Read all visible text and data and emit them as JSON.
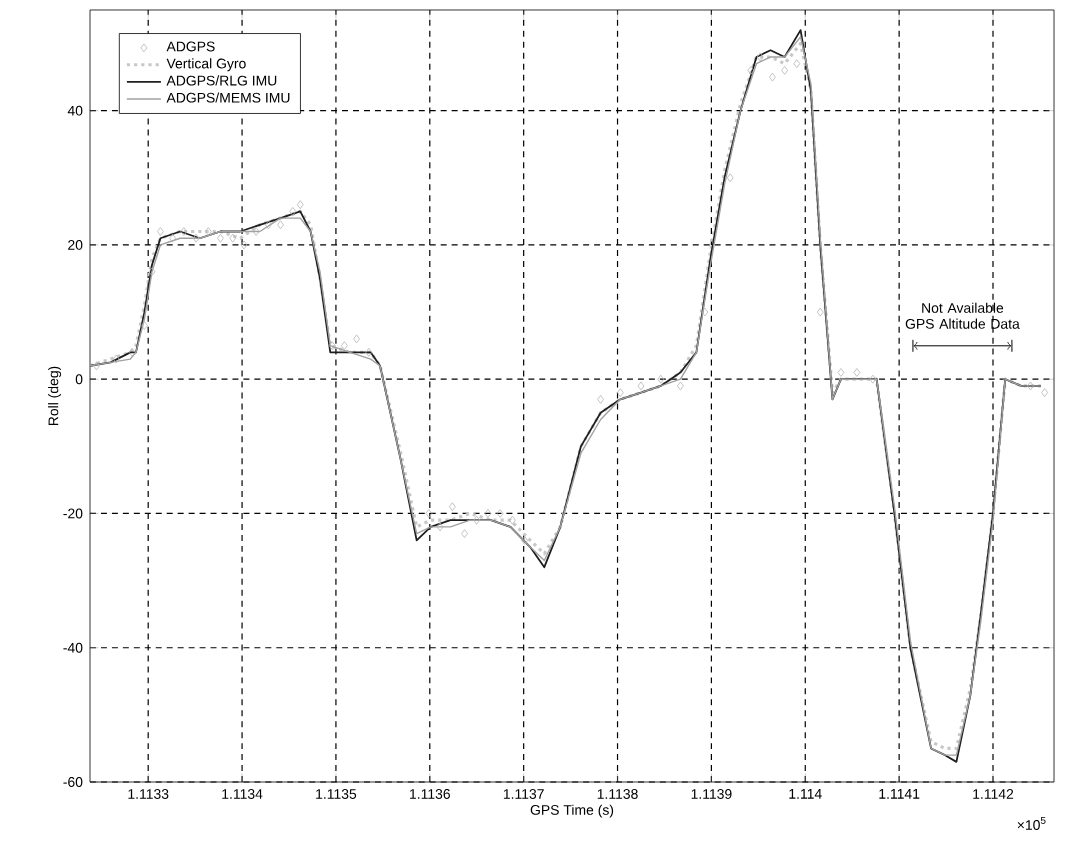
{
  "chart_data": {
    "type": "line",
    "xlabel": "GPS Time (s)",
    "ylabel": "Roll (deg)",
    "xlim": [
      1.113238,
      1.114265
    ],
    "ylim": [
      -60,
      55
    ],
    "xticks": [
      1.1133,
      1.1134,
      1.1135,
      1.1136,
      1.1137,
      1.1138,
      1.1139,
      1.114,
      1.1141,
      1.1142
    ],
    "yticks": [
      -60,
      -40,
      -20,
      0,
      20,
      40
    ],
    "grid": true,
    "legend": "top left",
    "annotations": [
      "×10$^{5}$",
      "Not Available GPS Altitude Data"
    ],
    "x": [
      1.113238,
      1.11326,
      1.113281,
      1.113287,
      1.113296,
      1.113304,
      1.113313,
      1.113334,
      1.113355,
      1.113377,
      1.113398,
      1.113419,
      1.113441,
      1.113462,
      1.113473,
      1.113483,
      1.113494,
      1.113515,
      1.113537,
      1.113547,
      1.113569,
      1.113586,
      1.113601,
      1.113622,
      1.113643,
      1.113665,
      1.113686,
      1.113707,
      1.113722,
      1.113739,
      1.113761,
      1.113782,
      1.113803,
      1.113825,
      1.113846,
      1.113867,
      1.113884,
      1.113899,
      1.113914,
      1.113931,
      1.113948,
      1.113963,
      1.113978,
      1.113995,
      1.114006,
      1.114016,
      1.114029,
      1.114038,
      1.114059,
      1.114076,
      1.114095,
      1.114112,
      1.114134,
      1.114149,
      1.114161,
      1.114176,
      1.114187,
      1.1142,
      1.114213,
      1.11423,
      1.114251
    ],
    "series": [
      {
        "name": "ADGPS",
        "type": "scatter",
        "marker": "diamond",
        "color": "#b4b4b4",
        "x": [
          1.113245,
          1.113266,
          1.113283,
          1.113296,
          1.113304,
          1.113313,
          1.113326,
          1.113338,
          1.113351,
          1.113364,
          1.113377,
          1.11339,
          1.113402,
          1.113415,
          1.113428,
          1.113441,
          1.113454,
          1.113462,
          1.113496,
          1.113509,
          1.113522,
          1.113535,
          1.113599,
          1.113611,
          1.113624,
          1.113637,
          1.11365,
          1.113662,
          1.113675,
          1.113688,
          1.113701,
          1.113782,
          1.113803,
          1.113825,
          1.113846,
          1.113867,
          1.113893,
          1.11392,
          1.113942,
          1.113952,
          1.113965,
          1.113978,
          1.113991,
          1.114016,
          1.114038,
          1.114055,
          1.114072,
          1.11424,
          1.114255
        ],
        "values": [
          2,
          3,
          4,
          8,
          16,
          22,
          21,
          22,
          21,
          22,
          21,
          21,
          20,
          22,
          23,
          23,
          25,
          26,
          5,
          5,
          6,
          4,
          -20,
          -22,
          -19,
          -23,
          -21,
          -20,
          -20,
          -21,
          -24,
          -3,
          -2,
          -1,
          0,
          -1,
          10,
          30,
          46,
          48,
          45,
          46,
          47,
          10,
          1,
          1,
          0,
          -1,
          -2
        ]
      },
      {
        "name": "Vertical Gyro",
        "color": "#c8c8c8",
        "line_style": "dotted",
        "values": [
          2,
          3,
          4,
          5,
          11,
          18,
          21,
          22,
          22,
          22,
          21,
          23,
          24,
          25,
          23,
          15,
          5,
          4,
          4,
          2,
          -11,
          -22,
          -21,
          -21,
          -20,
          -21,
          -21,
          -24,
          -26,
          -22,
          -10,
          -5,
          -3,
          -2,
          -1,
          1,
          5,
          19,
          31,
          41,
          48,
          48,
          47,
          50,
          43,
          20,
          -2,
          0,
          0,
          0,
          -20,
          -40,
          -54,
          -55,
          -55,
          -46,
          -35,
          -20,
          0,
          -1,
          -1
        ]
      },
      {
        "name": "ADGPS/RLG IMU",
        "color": "#1e1e1e",
        "line_style": "solid",
        "values": [
          2,
          2.5,
          4,
          4,
          10,
          17,
          21,
          22,
          21,
          22,
          22,
          23,
          24,
          25,
          22,
          15,
          4,
          4,
          4,
          2,
          -12,
          -24,
          -22,
          -21,
          -21,
          -21,
          -22,
          -25,
          -28,
          -22,
          -10,
          -5,
          -3,
          -2,
          -1,
          1,
          4,
          18,
          30,
          40,
          48,
          49,
          48,
          52,
          43,
          20,
          -3,
          0,
          0,
          0,
          -20,
          -40,
          -55,
          -56,
          -57,
          -47,
          -35,
          -20,
          0,
          -1,
          -1
        ]
      },
      {
        "name": "ADGPS/MEMS IMU",
        "color": "#a0a0a0",
        "line_style": "solid",
        "values": [
          2,
          2.5,
          3,
          4,
          9,
          16,
          20,
          21,
          21,
          22,
          22,
          22,
          24,
          24,
          22,
          16,
          5,
          4,
          3,
          2,
          -12,
          -23,
          -22,
          -22,
          -21,
          -21,
          -22,
          -25,
          -27,
          -22,
          -11,
          -6,
          -3,
          -2,
          -1,
          0,
          4,
          17,
          29,
          40,
          47,
          48,
          48,
          51,
          44,
          21,
          -3,
          0,
          0,
          0,
          -19,
          -39,
          -55,
          -56,
          -56,
          -47,
          -36,
          -21,
          0,
          -1,
          -1
        ]
      }
    ]
  }
}
